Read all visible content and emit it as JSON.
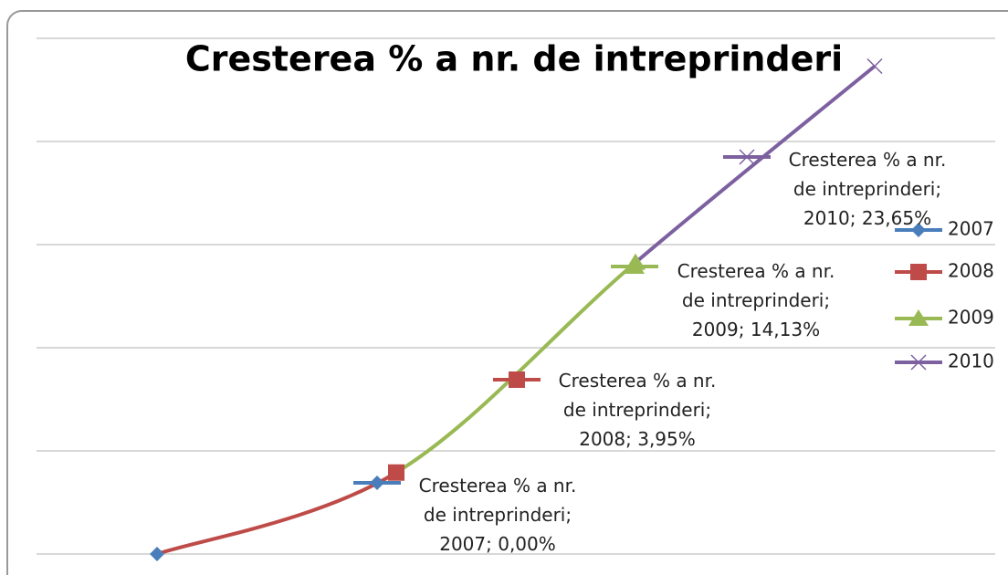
{
  "chart_data": {
    "type": "line",
    "title": "Cresterea % a nr. de intreprinderi",
    "categories": [
      null,
      null,
      null,
      null
    ],
    "ylim": [
      0,
      25
    ],
    "yticks": [
      0,
      5,
      10,
      15,
      20,
      25
    ],
    "grid": true,
    "legend": "right",
    "series": [
      {
        "name": "2007",
        "color": "#4a7ebb",
        "marker": "diamond",
        "values": [
          0,
          null,
          null,
          null
        ],
        "value_labels": [
          "Cresterea % a nr. de intreprinderi; 2007; 0,00%",
          null,
          null,
          null
        ]
      },
      {
        "name": "2008",
        "color": "#be4b48",
        "marker": "square",
        "values": [
          null,
          3.95,
          null,
          null
        ],
        "value_labels": [
          null,
          "Cresterea % a nr. de intreprinderi; 2008; 3,95%",
          null,
          null
        ]
      },
      {
        "name": "2009",
        "color": "#98b954",
        "marker": "triangle",
        "values": [
          null,
          null,
          14.13,
          null
        ],
        "value_labels": [
          null,
          null,
          "Cresterea % a nr. de intreprinderi; 2009; 14,13%",
          null
        ]
      },
      {
        "name": "2010",
        "color": "#7d60a0",
        "marker": "x",
        "values": [
          null,
          null,
          null,
          23.65
        ],
        "value_labels": [
          null,
          null,
          null,
          "Cresterea % a nr. de intreprinderi; 2010; 23,65%"
        ]
      }
    ]
  }
}
